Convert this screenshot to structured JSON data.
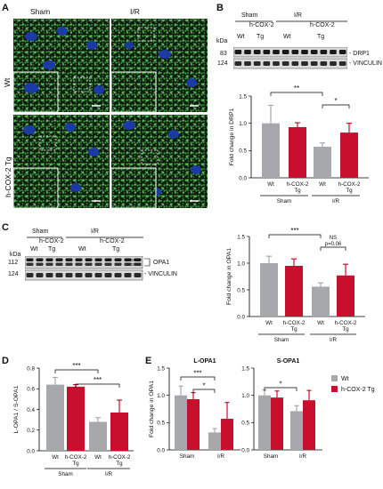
{
  "panels": {
    "A": {
      "letter": "A",
      "col_labels": [
        "Sham",
        "I/R"
      ],
      "row_labels": [
        "Wt",
        "h-COX-2 Tg"
      ]
    },
    "B": {
      "letter": "B",
      "blot": {
        "groups": [
          "Sham",
          "I/R"
        ],
        "subgroups": [
          "h-COX-2",
          "h-COX-2"
        ],
        "lanes": [
          "Wt",
          "Tg",
          "Wt",
          "Tg"
        ],
        "kda_label": "kDa",
        "rows": [
          {
            "kda": "83",
            "name": "- DRP1"
          },
          {
            "kda": "124",
            "name": "- VINCULIN"
          }
        ]
      }
    },
    "C": {
      "letter": "C",
      "blot": {
        "groups": [
          "Sham",
          "I/R"
        ],
        "subgroups": [
          "h-COX-2",
          "h-COX-2"
        ],
        "lanes": [
          "Wt",
          "Tg",
          "Wt",
          "Tg"
        ],
        "kda_label": "kDa",
        "rows": [
          {
            "kda": "112",
            "name": "OPA1"
          },
          {
            "kda": "124",
            "name": "- VINCULIN"
          }
        ],
        "bands": [
          "L-OPA1",
          "S-OPA1"
        ]
      }
    },
    "D": {
      "letter": "D"
    },
    "E": {
      "letter": "E"
    }
  },
  "chart_data": [
    {
      "id": "B",
      "type": "bar",
      "ylabel": "Fold change in DRP1",
      "ylim": [
        0,
        1.5
      ],
      "yticks": [
        "0.0",
        "0.5",
        "1.0",
        "1.5"
      ],
      "categories": [
        "Wt",
        "h-COX-2 Tg",
        "Wt",
        "h-COX-2 Tg"
      ],
      "groups": [
        "Sham",
        "I/R"
      ],
      "values": [
        1.0,
        0.93,
        0.57,
        0.83
      ],
      "errors": [
        0.33,
        0.08,
        0.07,
        0.17
      ],
      "colors": [
        "#a7a8ac",
        "#c8102e",
        "#a7a8ac",
        "#c8102e"
      ],
      "annotations": [
        {
          "from": 0,
          "to": 2,
          "label": "**"
        },
        {
          "from": 2,
          "to": 3,
          "label": "*"
        }
      ]
    },
    {
      "id": "C",
      "type": "bar",
      "ylabel": "Fold change in OPA1",
      "ylim": [
        0,
        1.5
      ],
      "yticks": [
        "0.0",
        "0.5",
        "1.0",
        "1.5"
      ],
      "categories": [
        "Wt",
        "h-COX-2 Tg",
        "Wt",
        "h-COX-2 Tg"
      ],
      "groups": [
        "Sham",
        "I/R"
      ],
      "values": [
        1.0,
        0.95,
        0.56,
        0.77
      ],
      "errors": [
        0.13,
        0.13,
        0.07,
        0.21
      ],
      "colors": [
        "#a7a8ac",
        "#c8102e",
        "#a7a8ac",
        "#c8102e"
      ],
      "annotations": [
        {
          "from": 0,
          "to": 2,
          "label": "***"
        },
        {
          "from": 2,
          "to": 3,
          "label": "NS\np=0.06"
        }
      ]
    },
    {
      "id": "D",
      "type": "bar",
      "ylabel": "L-OPA1 / S-OPA1",
      "ylim": [
        0,
        0.8
      ],
      "yticks": [
        "0.0",
        "0.2",
        "0.4",
        "0.6",
        "0.8"
      ],
      "categories": [
        "Wt",
        "h-COX-2 Tg",
        "Wt",
        "h-COX-2 Tg"
      ],
      "groups": [
        "Sham",
        "I/R"
      ],
      "values": [
        0.64,
        0.62,
        0.28,
        0.37
      ],
      "errors": [
        0.07,
        0.02,
        0.04,
        0.12
      ],
      "colors": [
        "#a7a8ac",
        "#c8102e",
        "#a7a8ac",
        "#c8102e"
      ],
      "annotations": [
        {
          "from": 0,
          "to": 2,
          "label": "***"
        },
        {
          "from": 1,
          "to": 3,
          "label": "***"
        }
      ]
    },
    {
      "id": "E",
      "type": "bar",
      "ylabel": "Fold change in OPA1",
      "ylim": [
        0,
        1.5
      ],
      "yticks": [
        "0.0",
        "0.5",
        "1.0",
        "1.5"
      ],
      "subplots": [
        "L-OPA1",
        "S-OPA1"
      ],
      "categories": [
        "Sham",
        "I/R",
        "Sham",
        "I/R"
      ],
      "series": [
        {
          "name": "Wt",
          "values": [
            1.0,
            0.32,
            1.0,
            0.71
          ],
          "errors": [
            0.17,
            0.07,
            0.1,
            0.1
          ]
        },
        {
          "name": "h-COX-2 Tg",
          "values": [
            0.93,
            0.57,
            0.96,
            0.91
          ],
          "errors": [
            0.12,
            0.3,
            0.12,
            0.18
          ]
        }
      ],
      "colors": [
        "#a7a8ac",
        "#c8102e"
      ],
      "annotations": [
        {
          "label": "***",
          "desc": "L-OPA1 Wt Sham vs Wt I/R"
        },
        {
          "label": "*",
          "desc": "L-OPA1 Tg Sham vs Wt I/R"
        },
        {
          "label": "*",
          "desc": "S-OPA1 Wt Sham vs Wt I/R"
        }
      ]
    }
  ]
}
